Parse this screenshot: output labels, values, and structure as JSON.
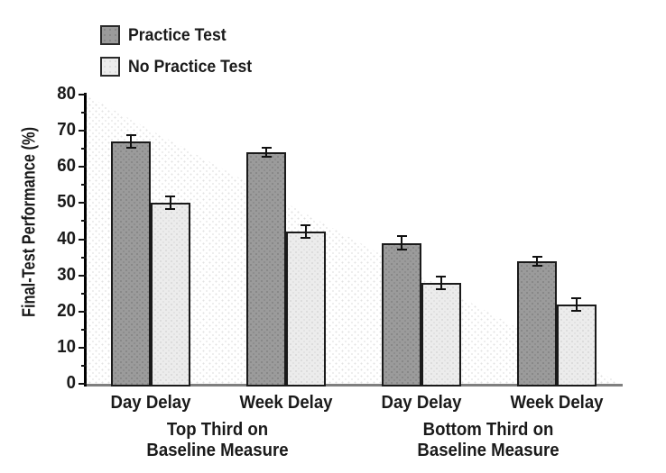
{
  "chart_data": {
    "type": "bar",
    "title": "",
    "ylabel": "Final-Test Performance (%)",
    "ylim": [
      0,
      80
    ],
    "ytick_step": 10,
    "yticks": [
      "0",
      "10",
      "20",
      "30",
      "40",
      "50",
      "60",
      "70",
      "80"
    ],
    "grid": false,
    "legend_position": "top-left",
    "categories": [
      "Day Delay",
      "Week Delay",
      "Day Delay",
      "Week Delay"
    ],
    "group_sections": [
      {
        "label_lines": [
          "Top Third on",
          "Baseline Measure"
        ]
      },
      {
        "label_lines": [
          "Bottom Third on",
          "Baseline Measure"
        ]
      }
    ],
    "series": [
      {
        "name": "Practice Test",
        "color": "#9b9b9b",
        "values": [
          67,
          64,
          39,
          34
        ],
        "errors": [
          1.5,
          1.0,
          1.5,
          1.0
        ]
      },
      {
        "name": "No Practice Test",
        "color": "#ececec",
        "values": [
          50,
          42,
          28,
          22
        ],
        "errors": [
          1.5,
          1.5,
          1.5,
          1.5
        ]
      }
    ],
    "colors": {
      "bar_border": "#1a1a1a",
      "axis": "#000000",
      "baseline": "#7f7f7f",
      "error_bar": "#111111",
      "background": "#ffffff"
    }
  }
}
